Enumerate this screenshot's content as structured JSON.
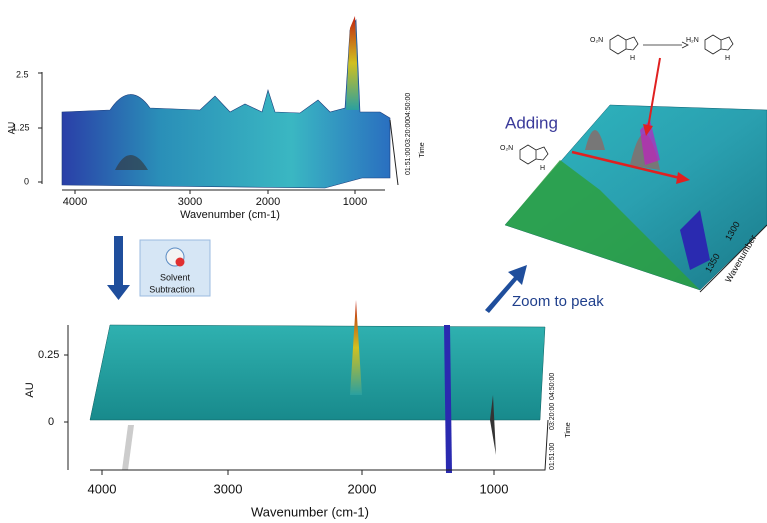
{
  "top_plot": {
    "y_axis_label": "AU",
    "y_ticks": [
      "2.5",
      "1.25",
      "0"
    ],
    "x_ticks": [
      "4000",
      "3000",
      "2000",
      "1000"
    ],
    "x_axis_label": "Wavenumber (cm-1)",
    "time_ticks": [
      "01:51:00",
      "03:20:00",
      "04:50:00"
    ],
    "time_label": "Time"
  },
  "button": {
    "line1": "Solvent",
    "line2": "Subtraction"
  },
  "bottom_plot": {
    "y_axis_label": "AU",
    "y_ticks": [
      "0.25",
      "0"
    ],
    "x_ticks": [
      "4000",
      "3000",
      "2000",
      "1000"
    ],
    "x_axis_label": "Wavenumber (cm-1)",
    "time_ticks": [
      "01:51:00",
      "03:20:00",
      "04:50:00"
    ],
    "time_label": "Time"
  },
  "zoom_plot": {
    "label": "Adding",
    "wavenumber_ticks": [
      "1300",
      "1350"
    ],
    "axis_label": "Wavenumber"
  },
  "zoom_arrow_label": "Zoom to peak",
  "reaction": {
    "reactant": "O₂N",
    "reactant_nh": "H",
    "product": "H₂N",
    "product_nh": "H",
    "adding_molecule": "O₂N",
    "adding_nh": "H"
  }
}
